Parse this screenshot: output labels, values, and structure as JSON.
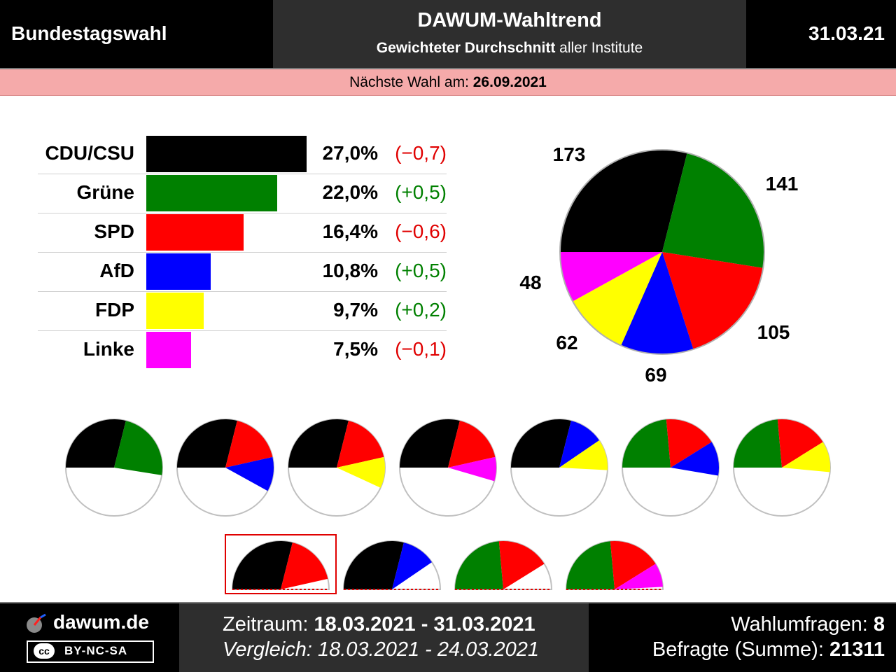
{
  "header": {
    "election": "Bundestagswahl",
    "title": "DAWUM-Wahltrend",
    "subtitle_bold": "Gewichteter Durchschnitt",
    "subtitle_rest": "aller Institute",
    "date": "31.03.21"
  },
  "next_election": {
    "label": "Nächste Wahl am:",
    "date": "26.09.2021"
  },
  "chart_data": [
    {
      "type": "bar",
      "orientation": "horizontal",
      "categories": [
        "CDU/CSU",
        "Grüne",
        "SPD",
        "AfD",
        "FDP",
        "Linke"
      ],
      "values": [
        27.0,
        22.0,
        16.4,
        10.8,
        9.7,
        7.5
      ],
      "value_labels": [
        "27,0%",
        "22,0%",
        "16,4%",
        "10,8%",
        "9,7%",
        "7,5%"
      ],
      "changes": [
        -0.7,
        0.5,
        -0.6,
        0.5,
        0.2,
        -0.1
      ],
      "change_labels": [
        "(−0,7)",
        "(+0,5)",
        "(−0,6)",
        "(+0,5)",
        "(+0,2)",
        "(−0,1)"
      ],
      "colors": [
        "#000000",
        "#008000",
        "#ff0000",
        "#0000ff",
        "#ffff00",
        "#ff00ff"
      ],
      "change_colors": {
        "negative": "#e00000",
        "positive": "#008000"
      },
      "xlim": [
        0,
        27.0
      ]
    },
    {
      "type": "pie",
      "title": "",
      "categories": [
        "CDU/CSU",
        "Grüne",
        "SPD",
        "AfD",
        "FDP",
        "Linke"
      ],
      "values": [
        173,
        141,
        105,
        69,
        62,
        48
      ],
      "colors": [
        "#000000",
        "#008000",
        "#ff0000",
        "#0000ff",
        "#ffff00",
        "#ff00ff"
      ]
    },
    {
      "type": "pie",
      "subtype": "coalition-semicircles",
      "seats_total": 598,
      "coalitions": [
        {
          "parties": [
            "CDU/CSU",
            "Grüne"
          ],
          "seats": [
            173,
            141
          ]
        },
        {
          "parties": [
            "CDU/CSU",
            "SPD",
            "AfD"
          ],
          "seats": [
            173,
            105,
            69
          ]
        },
        {
          "parties": [
            "CDU/CSU",
            "SPD",
            "FDP"
          ],
          "seats": [
            173,
            105,
            62
          ]
        },
        {
          "parties": [
            "CDU/CSU",
            "SPD",
            "Linke"
          ],
          "seats": [
            173,
            105,
            48
          ]
        },
        {
          "parties": [
            "CDU/CSU",
            "AfD",
            "FDP"
          ],
          "seats": [
            173,
            69,
            62
          ]
        },
        {
          "parties": [
            "Grüne",
            "SPD",
            "AfD"
          ],
          "seats": [
            141,
            105,
            69
          ]
        },
        {
          "parties": [
            "Grüne",
            "SPD",
            "FDP"
          ],
          "seats": [
            141,
            105,
            62
          ]
        },
        {
          "parties": [
            "CDU/CSU",
            "SPD"
          ],
          "seats": [
            173,
            105
          ],
          "highlighted": true
        },
        {
          "parties": [
            "CDU/CSU",
            "AfD"
          ],
          "seats": [
            173,
            69
          ]
        },
        {
          "parties": [
            "Grüne",
            "SPD"
          ],
          "seats": [
            141,
            105
          ]
        },
        {
          "parties": [
            "Grüne",
            "SPD",
            "Linke"
          ],
          "seats": [
            141,
            105,
            48
          ]
        }
      ],
      "party_colors": {
        "CDU/CSU": "#000000",
        "Grüne": "#008000",
        "SPD": "#ff0000",
        "AfD": "#0000ff",
        "FDP": "#ffff00",
        "Linke": "#ff00ff"
      }
    }
  ],
  "footer": {
    "site": "dawum.de",
    "license": "BY-NC-SA",
    "license_icon": "cc-icon",
    "zeitraum_label": "Zeitraum:",
    "zeitraum": "18.03.2021 - 31.03.2021",
    "vergleich": "Vergleich: 18.03.2021 - 24.03.2021",
    "umfragen_label": "Wahlumfragen:",
    "umfragen": "8",
    "befragte_label": "Befragte (Summe):",
    "befragte": "21311"
  }
}
